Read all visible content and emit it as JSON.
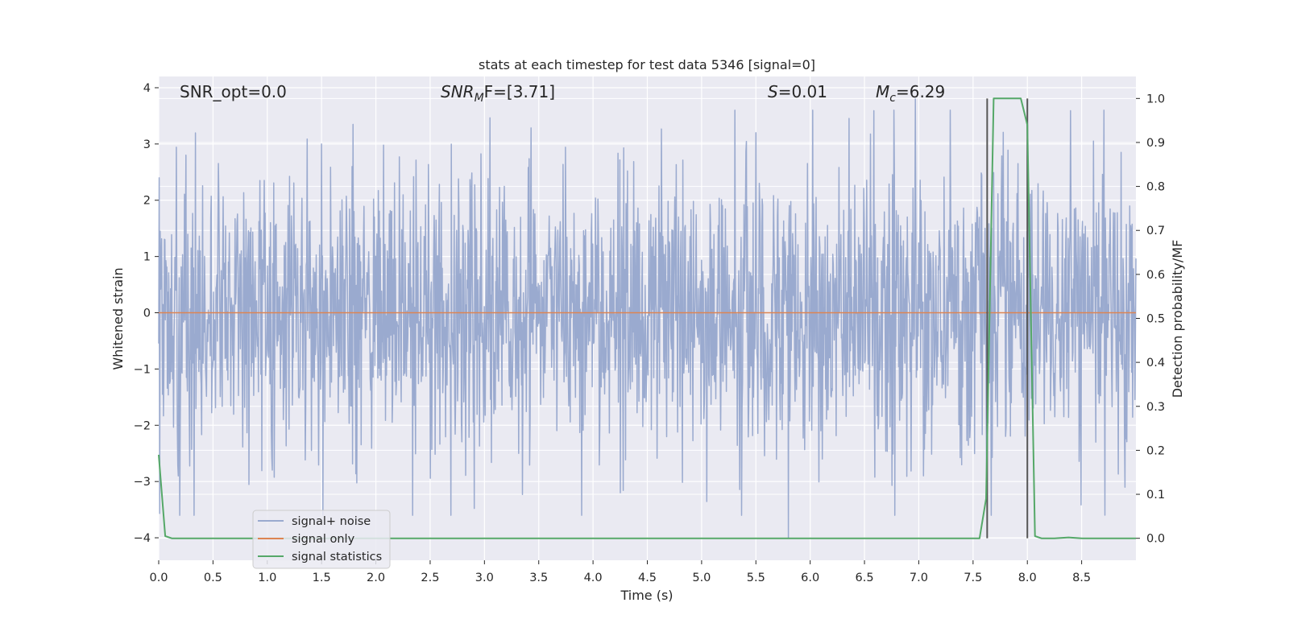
{
  "chart_data": {
    "type": "line",
    "title": "stats at each timestep for test data 5346 [signal=0]",
    "xlabel": "Time (s)",
    "ylabel": "Whitened strain",
    "y2label": "Detection probability/MF",
    "xlim": [
      0.0,
      9.0
    ],
    "ylim": [
      -4.4,
      4.2
    ],
    "y2lim": [
      -0.05,
      1.05
    ],
    "xticks": [
      "0.0",
      "0.5",
      "1.0",
      "1.5",
      "2.0",
      "2.5",
      "3.0",
      "3.5",
      "4.0",
      "4.5",
      "5.0",
      "5.5",
      "6.0",
      "6.5",
      "7.0",
      "7.5",
      "8.0",
      "8.5"
    ],
    "yticks": [
      "4",
      "3",
      "2",
      "1",
      "0",
      "−1",
      "−2",
      "−3",
      "−4"
    ],
    "y2ticks": [
      "1.0",
      "0.9",
      "0.8",
      "0.7",
      "0.6",
      "0.5",
      "0.4",
      "0.3",
      "0.2",
      "0.1",
      "0.0"
    ],
    "grid": true,
    "legend_position": "lower-left",
    "annotations": {
      "snr_opt": "SNR_opt=0.0",
      "snr_mf_sym": "SNR",
      "snr_mf_sub": "M",
      "snr_mf_tail": "F=[3.71]",
      "s_sym": "S",
      "s_val": "=0.01",
      "mc_sym": "M",
      "mc_sub": "c",
      "mc_val": "=6.29"
    },
    "series": [
      {
        "name": "signal+ noise",
        "axis": "left",
        "color": "#9aaacf",
        "note": "whitened strain noise, roughly Gaussian in [-4, 4]",
        "x_range": [
          0.0,
          9.0
        ],
        "samples": 2048,
        "spread": 1.2,
        "notable_spikes": [
          {
            "x": 0.25,
            "y": 2.8
          },
          {
            "x": 0.18,
            "y": -2.9
          },
          {
            "x": 1.5,
            "y": 3.0
          },
          {
            "x": 4.25,
            "y": -3.2
          },
          {
            "x": 5.8,
            "y": -4.0
          },
          {
            "x": 6.78,
            "y": -3.6
          },
          {
            "x": 6.97,
            "y": 3.8
          },
          {
            "x": 8.9,
            "y": -3.1
          },
          {
            "x": 5.5,
            "y": 3.2
          }
        ]
      },
      {
        "name": "signal only",
        "axis": "left",
        "color": "#dd8452",
        "x": [
          0.0,
          9.0
        ],
        "y": [
          0.0,
          0.0
        ]
      },
      {
        "name": "signal statistics",
        "axis": "right",
        "color": "#55a868",
        "x": [
          0.0,
          0.06,
          0.12,
          7.5,
          7.56,
          7.62,
          7.69,
          7.75,
          7.94,
          8.0,
          8.07,
          8.13,
          8.25,
          8.38,
          8.5,
          9.0
        ],
        "y": [
          0.19,
          0.005,
          0.0,
          0.0,
          0.0,
          0.09,
          1.0,
          1.0,
          1.0,
          0.94,
          0.005,
          0.0,
          0.0,
          0.002,
          0.0,
          0.0
        ]
      }
    ],
    "vertical_markers": {
      "color": "#555555",
      "x": [
        7.63,
        8.0
      ],
      "y2_range": [
        0.0,
        1.0
      ]
    }
  },
  "legend": {
    "items": [
      {
        "label": "signal+ noise",
        "color": "#9aaacf"
      },
      {
        "label": "signal only",
        "color": "#dd8452"
      },
      {
        "label": "signal statistics",
        "color": "#55a868"
      }
    ]
  },
  "colors": {
    "plot_background": "#eaeaf2",
    "grid": "#ffffff",
    "text": "#262626"
  }
}
